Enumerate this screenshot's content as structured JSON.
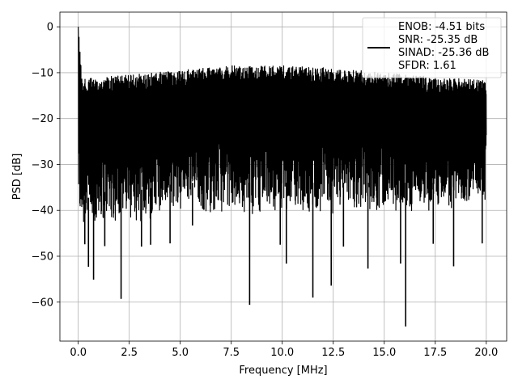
{
  "chart_data": {
    "type": "line",
    "xlabel": "Frequency [MHz]",
    "ylabel": "PSD [dB]",
    "xlim": [
      -0.9,
      21.0
    ],
    "ylim": [
      -68.5,
      3.2
    ],
    "xticks": [
      0.0,
      2.5,
      5.0,
      7.5,
      10.0,
      12.5,
      15.0,
      17.5,
      20.0
    ],
    "xtick_labels": [
      "0.0",
      "2.5",
      "5.0",
      "7.5",
      "10.0",
      "12.5",
      "15.0",
      "17.5",
      "20.0"
    ],
    "yticks": [
      0,
      -10,
      -20,
      -30,
      -40,
      -50,
      -60
    ],
    "ytick_labels": [
      "0",
      "−10",
      "−20",
      "−30",
      "−40",
      "−50",
      "−60"
    ],
    "grid": true,
    "legend_position": "top-right",
    "line_color": "#000000",
    "series": [
      {
        "legend_lines": [
          "ENOB: -4.51 bits",
          "SNR: -25.35 dB",
          "SINAD: -25.36 dB",
          "SFDR: 1.61"
        ],
        "x_range": [
          0.0,
          20.0
        ],
        "envelope": {
          "x": [
            0,
            0.05,
            0.2,
            1,
            2.5,
            5,
            7.5,
            10,
            12.5,
            15,
            17.5,
            20
          ],
          "upper": [
            0,
            -4,
            -13,
            -12.5,
            -12,
            -11,
            -10,
            -10,
            -10.5,
            -11.5,
            -12.5,
            -13
          ],
          "lower": [
            -38,
            -40,
            -42,
            -40,
            -40,
            -38,
            -38,
            -38,
            -38,
            -38,
            -38,
            -35
          ]
        },
        "deep_nulls": [
          {
            "x": 0.32,
            "y": -47.4
          },
          {
            "x": 0.5,
            "y": -52.3
          },
          {
            "x": 0.75,
            "y": -55.1
          },
          {
            "x": 1.3,
            "y": -47.8
          },
          {
            "x": 2.1,
            "y": -59.3
          },
          {
            "x": 3.1,
            "y": -47.9
          },
          {
            "x": 3.55,
            "y": -47.5
          },
          {
            "x": 4.5,
            "y": -47.2
          },
          {
            "x": 5.6,
            "y": -43.3
          },
          {
            "x": 8.4,
            "y": -60.6
          },
          {
            "x": 9.9,
            "y": -47.5
          },
          {
            "x": 10.2,
            "y": -51.6
          },
          {
            "x": 11.5,
            "y": -59.0
          },
          {
            "x": 12.4,
            "y": -56.4
          },
          {
            "x": 13.0,
            "y": -47.9
          },
          {
            "x": 14.2,
            "y": -52.7
          },
          {
            "x": 15.8,
            "y": -51.6
          },
          {
            "x": 16.05,
            "y": -65.3
          },
          {
            "x": 17.4,
            "y": -47.3
          },
          {
            "x": 18.4,
            "y": -52.2
          },
          {
            "x": 19.8,
            "y": -47.2
          }
        ]
      }
    ]
  }
}
